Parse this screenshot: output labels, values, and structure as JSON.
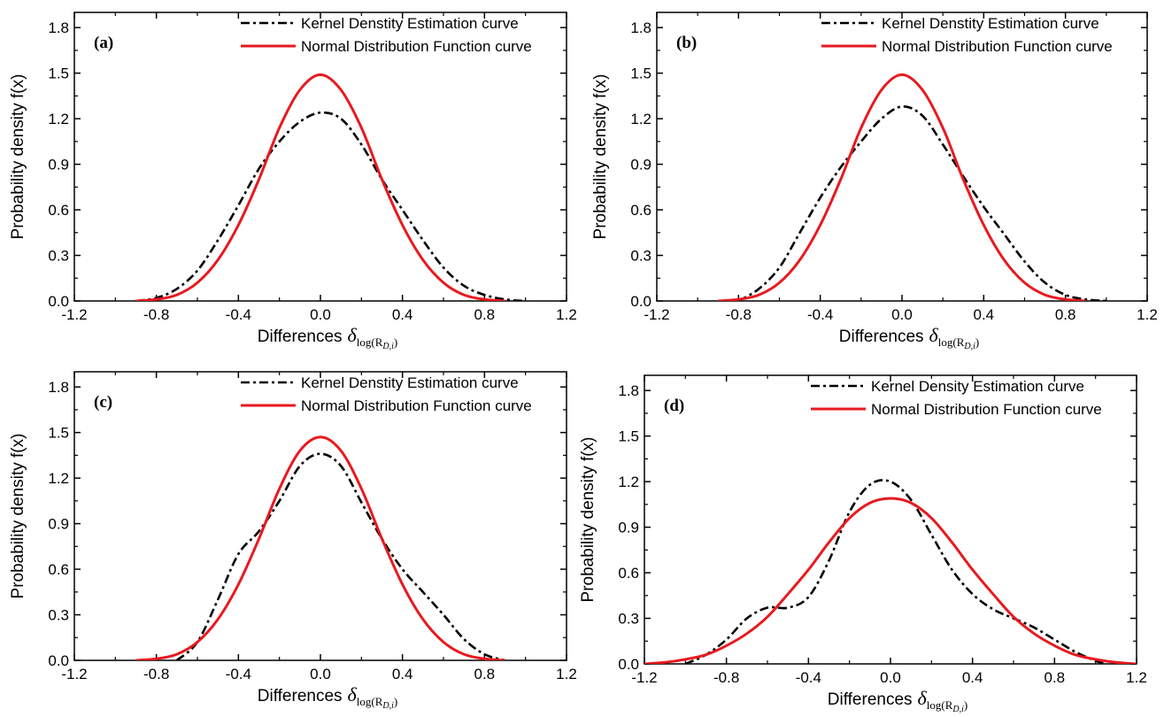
{
  "chart_data": [
    {
      "type": "line",
      "panel_label": "(a)",
      "xlabel": "Differences",
      "xlabel_symbol": "δ",
      "xlabel_subscript": "log(R",
      "xlabel_subscript_inner": "D,i",
      "xlabel_subscript_close": ")",
      "ylabel": "Probability density f(x)",
      "xlim": [
        -1.2,
        1.2
      ],
      "ylim": [
        0,
        1.9
      ],
      "xticks": [
        "-1.2",
        "-0.8",
        "-0.4",
        "0.0",
        "0.4",
        "0.8",
        "1.2"
      ],
      "yticks": [
        "0.0",
        "0.3",
        "0.6",
        "0.9",
        "1.2",
        "1.5",
        "1.8"
      ],
      "legend_position": "top-right",
      "series": [
        {
          "name": "Kernel Denstity Estimation curve",
          "color": "#000000",
          "style": "dashdot",
          "x": [
            -0.9,
            -0.8,
            -0.7,
            -0.6,
            -0.5,
            -0.4,
            -0.3,
            -0.2,
            -0.1,
            0.0,
            0.1,
            0.2,
            0.3,
            0.4,
            0.5,
            0.6,
            0.7,
            0.8,
            0.9,
            1.0
          ],
          "y": [
            0.0,
            0.02,
            0.08,
            0.2,
            0.4,
            0.63,
            0.87,
            1.05,
            1.18,
            1.24,
            1.2,
            1.03,
            0.8,
            0.6,
            0.4,
            0.22,
            0.1,
            0.04,
            0.01,
            0.0
          ]
        },
        {
          "name": "Normal Distribution Function curve",
          "color": "#e8191f",
          "style": "solid",
          "x": [
            -0.9,
            -0.8,
            -0.7,
            -0.6,
            -0.5,
            -0.4,
            -0.3,
            -0.2,
            -0.1,
            0.0,
            0.1,
            0.2,
            0.3,
            0.4,
            0.5,
            0.6,
            0.7,
            0.8,
            0.9
          ],
          "y": [
            0.0,
            0.01,
            0.04,
            0.12,
            0.27,
            0.5,
            0.8,
            1.14,
            1.39,
            1.49,
            1.39,
            1.14,
            0.8,
            0.5,
            0.27,
            0.12,
            0.04,
            0.01,
            0.0
          ]
        }
      ]
    },
    {
      "type": "line",
      "panel_label": "(b)",
      "xlabel": "Differences",
      "xlabel_symbol": "δ",
      "xlabel_subscript": "log(R",
      "xlabel_subscript_inner": "D,i",
      "xlabel_subscript_close": ")",
      "ylabel": "Probability density f(x)",
      "xlim": [
        -1.2,
        1.2
      ],
      "ylim": [
        0,
        1.9
      ],
      "xticks": [
        "-1.2",
        "-0.8",
        "-0.4",
        "0.0",
        "0.4",
        "0.8",
        "1.2"
      ],
      "yticks": [
        "0.0",
        "0.3",
        "0.6",
        "0.9",
        "1.2",
        "1.5",
        "1.8"
      ],
      "legend_position": "top-right",
      "series": [
        {
          "name": "Kernel Denstity Estimation curve",
          "color": "#000000",
          "style": "dashdot",
          "x": [
            -0.8,
            -0.7,
            -0.6,
            -0.5,
            -0.4,
            -0.3,
            -0.2,
            -0.1,
            0.0,
            0.1,
            0.2,
            0.3,
            0.4,
            0.5,
            0.6,
            0.7,
            0.8,
            0.9,
            1.0
          ],
          "y": [
            0.0,
            0.08,
            0.22,
            0.45,
            0.68,
            0.88,
            1.05,
            1.2,
            1.28,
            1.22,
            1.03,
            0.82,
            0.62,
            0.44,
            0.26,
            0.12,
            0.04,
            0.01,
            0.0
          ]
        },
        {
          "name": "Normal Distribution Function curve",
          "color": "#e8191f",
          "style": "solid",
          "x": [
            -0.9,
            -0.8,
            -0.7,
            -0.6,
            -0.5,
            -0.4,
            -0.3,
            -0.2,
            -0.1,
            0.0,
            0.1,
            0.2,
            0.3,
            0.4,
            0.5,
            0.6,
            0.7,
            0.8,
            0.9
          ],
          "y": [
            0.0,
            0.01,
            0.04,
            0.12,
            0.27,
            0.5,
            0.8,
            1.14,
            1.39,
            1.49,
            1.39,
            1.14,
            0.8,
            0.5,
            0.27,
            0.12,
            0.04,
            0.01,
            0.0
          ]
        }
      ]
    },
    {
      "type": "line",
      "panel_label": "(c)",
      "xlabel": "Differences",
      "xlabel_symbol": "δ",
      "xlabel_subscript": "log(R",
      "xlabel_subscript_inner": "D,i",
      "xlabel_subscript_close": ")",
      "ylabel": "Probability density f(x)",
      "xlim": [
        -1.2,
        1.2
      ],
      "ylim": [
        0,
        1.9
      ],
      "xticks": [
        "-1.2",
        "-0.8",
        "-0.4",
        "0.0",
        "0.4",
        "0.8",
        "1.2"
      ],
      "yticks": [
        "0.0",
        "0.3",
        "0.6",
        "0.9",
        "1.2",
        "1.5",
        "1.8"
      ],
      "legend_position": "top-right",
      "series": [
        {
          "name": "Kernel Denstity Estimation curve",
          "color": "#000000",
          "style": "dashdot",
          "x": [
            -0.7,
            -0.6,
            -0.5,
            -0.4,
            -0.3,
            -0.2,
            -0.1,
            0.0,
            0.1,
            0.2,
            0.3,
            0.4,
            0.5,
            0.6,
            0.7,
            0.8,
            0.9
          ],
          "y": [
            0.0,
            0.12,
            0.4,
            0.7,
            0.85,
            1.05,
            1.28,
            1.36,
            1.28,
            1.04,
            0.8,
            0.6,
            0.45,
            0.3,
            0.14,
            0.04,
            0.0
          ]
        },
        {
          "name": "Normal Distribution Function curve",
          "color": "#e8191f",
          "style": "solid",
          "x": [
            -0.9,
            -0.8,
            -0.7,
            -0.6,
            -0.5,
            -0.4,
            -0.3,
            -0.2,
            -0.1,
            0.0,
            0.1,
            0.2,
            0.3,
            0.4,
            0.5,
            0.6,
            0.7,
            0.8,
            0.9
          ],
          "y": [
            0.0,
            0.01,
            0.04,
            0.12,
            0.27,
            0.5,
            0.8,
            1.13,
            1.38,
            1.47,
            1.38,
            1.13,
            0.8,
            0.5,
            0.27,
            0.12,
            0.04,
            0.01,
            0.0
          ]
        }
      ]
    },
    {
      "type": "line",
      "panel_label": "(d)",
      "xlabel": "Differences",
      "xlabel_symbol": "δ",
      "xlabel_subscript": "log(R",
      "xlabel_subscript_inner": "D,i",
      "xlabel_subscript_close": ")",
      "ylabel": "Probability density f(x)",
      "xlim": [
        -1.2,
        1.2
      ],
      "ylim": [
        0,
        1.9
      ],
      "xticks": [
        "-1.2",
        "-0.8",
        "-0.4",
        "0.0",
        "0.4",
        "0.8",
        "1.2"
      ],
      "yticks": [
        "0.0",
        "0.3",
        "0.6",
        "0.9",
        "1.2",
        "1.5",
        "1.8"
      ],
      "legend_position": "top-right",
      "series": [
        {
          "name": "Kernel Density Estimation curve",
          "color": "#000000",
          "style": "dashdot",
          "x": [
            -1.0,
            -0.9,
            -0.8,
            -0.7,
            -0.6,
            -0.5,
            -0.4,
            -0.3,
            -0.2,
            -0.1,
            0.0,
            0.1,
            0.2,
            0.3,
            0.4,
            0.5,
            0.6,
            0.7,
            0.8,
            0.9,
            1.0,
            1.05
          ],
          "y": [
            0.0,
            0.06,
            0.16,
            0.3,
            0.37,
            0.37,
            0.44,
            0.68,
            1.0,
            1.18,
            1.2,
            1.08,
            0.85,
            0.62,
            0.46,
            0.36,
            0.3,
            0.24,
            0.16,
            0.08,
            0.02,
            0.0
          ]
        },
        {
          "name": "Normal Distribution Function curve",
          "color": "#e8191f",
          "style": "solid",
          "x": [
            -1.2,
            -1.1,
            -1.0,
            -0.9,
            -0.8,
            -0.7,
            -0.6,
            -0.5,
            -0.4,
            -0.3,
            -0.2,
            -0.1,
            0.0,
            0.1,
            0.2,
            0.3,
            0.4,
            0.5,
            0.6,
            0.7,
            0.8,
            0.9,
            1.0,
            1.1,
            1.2
          ],
          "y": [
            0.0,
            0.01,
            0.03,
            0.06,
            0.12,
            0.2,
            0.31,
            0.46,
            0.62,
            0.8,
            0.96,
            1.06,
            1.09,
            1.06,
            0.96,
            0.8,
            0.62,
            0.46,
            0.31,
            0.2,
            0.12,
            0.06,
            0.03,
            0.01,
            0.0
          ]
        }
      ]
    }
  ]
}
